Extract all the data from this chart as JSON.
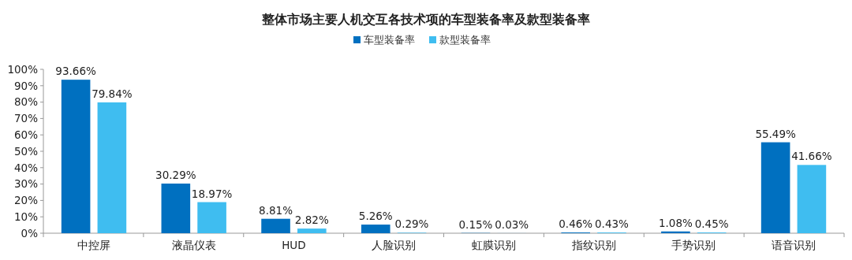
{
  "chart_data": {
    "type": "bar",
    "title": "整体市场主要人机交互各技术项的车型装备率及款型装备率",
    "categories": [
      "中控屏",
      "液晶仪表",
      "HUD",
      "人脸识别",
      "虹膜识别",
      "指纹识别",
      "手势识别",
      "语音识别"
    ],
    "series": [
      {
        "name": "车型装备率",
        "color": "#0070c0",
        "values": [
          93.66,
          30.29,
          8.81,
          5.26,
          0.15,
          0.46,
          1.08,
          55.49
        ],
        "value_labels": [
          "93.66%",
          "30.29%",
          "8.81%",
          "5.26%",
          "0.15%",
          "0.46%",
          "1.08%",
          "55.49%"
        ]
      },
      {
        "name": "款型装备率",
        "color": "#3fbdf0",
        "values": [
          79.84,
          18.97,
          2.82,
          0.29,
          0.03,
          0.43,
          0.45,
          41.66
        ],
        "value_labels": [
          "79.84%",
          "18.97%",
          "2.82%",
          "0.29%",
          "0.03%",
          "0.43%",
          "0.45%",
          "41.66%"
        ]
      }
    ],
    "ylim": [
      0,
      100
    ],
    "yticks": [
      {
        "value": 0,
        "label": "0%"
      },
      {
        "value": 10,
        "label": "10%"
      },
      {
        "value": 20,
        "label": "20%"
      },
      {
        "value": 30,
        "label": "30%"
      },
      {
        "value": 40,
        "label": "40%"
      },
      {
        "value": 50,
        "label": "50%"
      },
      {
        "value": 60,
        "label": "60%"
      },
      {
        "value": 70,
        "label": "70%"
      },
      {
        "value": 80,
        "label": "80%"
      },
      {
        "value": 90,
        "label": "90%"
      },
      {
        "value": 100,
        "label": "100%"
      }
    ],
    "legend": "top",
    "grid": false
  }
}
